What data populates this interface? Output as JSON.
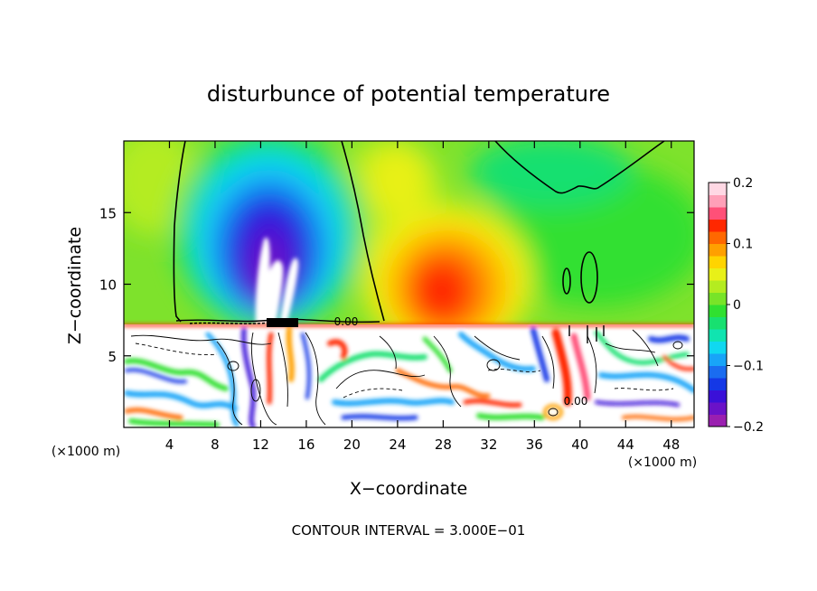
{
  "chart_data": {
    "type": "heatmap",
    "title": "disturbunce of potential temperature",
    "xlabel": "X−coordinate",
    "ylabel": "Z−coordinate",
    "x_unit_left": "(×1000 m)",
    "x_unit_right": "(×1000 m)",
    "xlim": [
      0,
      50
    ],
    "ylim": [
      0,
      20
    ],
    "xticks": [
      4,
      8,
      12,
      16,
      20,
      24,
      28,
      32,
      36,
      40,
      44,
      48
    ],
    "yticks": [
      5,
      10,
      15
    ],
    "footer": "CONTOUR INTERVAL = 3.000E−01",
    "contour_labels": [
      {
        "text": "0.00",
        "x": 18.8,
        "z": 7.3
      },
      {
        "text": "0.00",
        "x": 40.3,
        "z": 1.9
      }
    ],
    "colorbar": {
      "min": -0.2,
      "max": 0.2,
      "tick_labels": [
        "0.2",
        "0.1",
        "0",
        "−0.1",
        "−0.2"
      ],
      "tick_values": [
        0.2,
        0.1,
        0,
        -0.1,
        -0.2
      ],
      "colors": [
        "#9a1fb0",
        "#6a12c8",
        "#3a10d8",
        "#1438e6",
        "#1a6cf0",
        "#18a4f8",
        "#10d8f0",
        "#10e4b0",
        "#18e070",
        "#30e030",
        "#78e428",
        "#b4ec20",
        "#e8f018",
        "#ffd400",
        "#ffa000",
        "#ff6800",
        "#ff2800",
        "#ff5078",
        "#ffa0b8",
        "#ffd8e4"
      ]
    },
    "regions": {
      "cold_anomaly": {
        "x_range": [
          7,
          21
        ],
        "z_range": [
          7.3,
          20
        ],
        "min": -0.2
      },
      "warm_anomaly": {
        "x_range": [
          24,
          35
        ],
        "z_range": [
          7.3,
          16
        ],
        "max": 0.2
      },
      "turbulent_layer": {
        "x_range": [
          0,
          50
        ],
        "z_range": [
          0,
          7.3
        ]
      }
    }
  }
}
